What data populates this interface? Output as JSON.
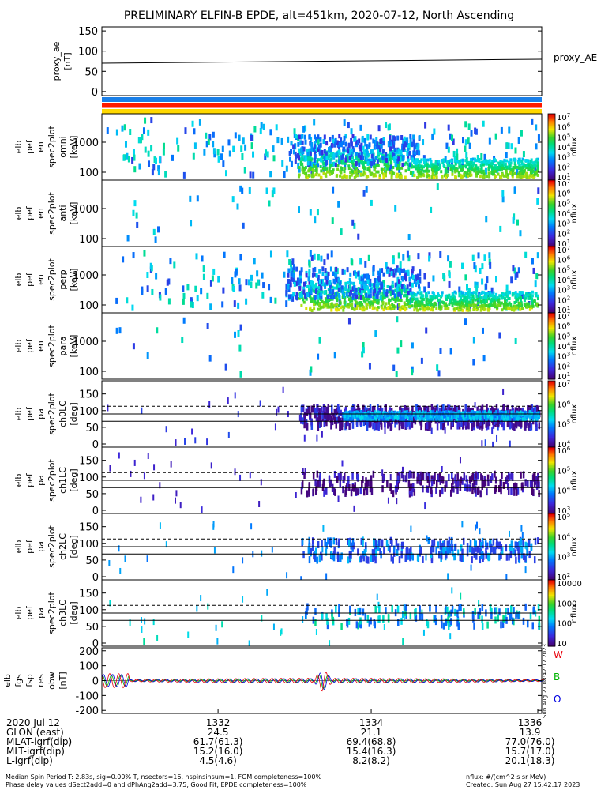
{
  "title": "PRELIMINARY ELFIN-B EPDE, alt=451km, 2020-07-12, North Ascending",
  "proxy_panel": {
    "ylabel": [
      "proxy_ae",
      "[nT]"
    ],
    "yticks": [
      0,
      50,
      100,
      150
    ],
    "ylim": [
      -10,
      160
    ],
    "legend": "proxy_AE"
  },
  "status_bars": [
    {
      "name": "bar1",
      "color": "#1a7fe8"
    },
    {
      "name": "bar2",
      "color": "#ff1a00"
    },
    {
      "name": "bar3",
      "color": "#ffd800"
    }
  ],
  "energy_panels": [
    {
      "ylabel": [
        "elb",
        "pef",
        "en",
        "spec2plot",
        "omni",
        "[keV]"
      ],
      "yticks": [
        "100",
        "1000"
      ],
      "cbar_ticks": [
        "10^1",
        "10^2",
        "10^3",
        "10^4",
        "10^5",
        "10^6",
        "10^7"
      ],
      "cbar_label": "nflux",
      "seed": 11,
      "density": 1.0
    },
    {
      "ylabel": [
        "elb",
        "pef",
        "en",
        "spec2plot",
        "anti",
        "[keV]"
      ],
      "yticks": [
        "100",
        "1000"
      ],
      "cbar_ticks": [
        "10^1",
        "10^2",
        "10^3",
        "10^4",
        "10^5",
        "10^6",
        "10^7"
      ],
      "cbar_label": "nflux",
      "seed": 23,
      "density": 0.12
    },
    {
      "ylabel": [
        "elb",
        "pef",
        "en",
        "spec2plot",
        "perp",
        "[keV]"
      ],
      "yticks": [
        "100",
        "1000"
      ],
      "cbar_ticks": [
        "10^1",
        "10^2",
        "10^3",
        "10^4",
        "10^5",
        "10^6",
        "10^7"
      ],
      "cbar_label": "nflux",
      "seed": 37,
      "density": 0.95
    },
    {
      "ylabel": [
        "elb",
        "pef",
        "en",
        "spec2plot",
        "para",
        "[keV]"
      ],
      "yticks": [
        "100",
        "1000"
      ],
      "cbar_ticks": [
        "10^1",
        "10^2",
        "10^3",
        "10^4",
        "10^5",
        "10^6",
        "10^7"
      ],
      "cbar_label": "nflux",
      "seed": 41,
      "density": 0.1
    }
  ],
  "pa_panels": [
    {
      "ylabel": [
        "elb",
        "pef",
        "pa",
        "spec2plot",
        "ch0LC",
        "[deg]"
      ],
      "yticks": [
        0,
        50,
        100,
        150
      ],
      "cbar_ticks": [
        "10^4",
        "10^5",
        "10^6",
        "10^7"
      ],
      "cbar_label": "nflux",
      "seed": 5,
      "density": 1.0
    },
    {
      "ylabel": [
        "elb",
        "pef",
        "pa",
        "spec2plot",
        "ch1LC",
        "[deg]"
      ],
      "yticks": [
        0,
        50,
        100,
        150
      ],
      "cbar_ticks": [
        "10^3",
        "10^4",
        "10^5",
        "10^6"
      ],
      "cbar_label": "nflux",
      "seed": 17,
      "density": 0.45
    },
    {
      "ylabel": [
        "elb",
        "pef",
        "pa",
        "spec2plot",
        "ch2LC",
        "[deg]"
      ],
      "yticks": [
        0,
        50,
        100,
        150
      ],
      "cbar_ticks": [
        "10^2",
        "10^3",
        "10^4",
        "10^5"
      ],
      "cbar_label": "nflux",
      "seed": 29,
      "density": 0.45
    },
    {
      "ylabel": [
        "elb",
        "pef",
        "pa",
        "spec2plot",
        "ch3LC",
        "[deg]"
      ],
      "yticks": [
        0,
        50,
        100,
        150
      ],
      "cbar_ticks": [
        "10",
        "100",
        "1000",
        "10000"
      ],
      "cbar_label": "nflux",
      "seed": 53,
      "density": 0.25
    }
  ],
  "fgs_panel": {
    "ylabel": [
      "elb",
      "fgs",
      "fsp",
      "res",
      "obw",
      "[nT]"
    ],
    "yticks": [
      -200,
      -100,
      0,
      100,
      200
    ],
    "ylim": [
      -220,
      220
    ],
    "legend": [
      {
        "label": "W",
        "color": "#e8000b"
      },
      {
        "label": "B",
        "color": "#00b400"
      },
      {
        "label": "O",
        "color": "#0000e0"
      }
    ],
    "created_stamp": "Sun Aug 27 08:42:17 2023"
  },
  "x_axis": {
    "row_labels": [
      "2020 Jul 12",
      "GLON (east)",
      "MLAT-igrf(dip)",
      "MLT-igrf(dip)",
      "L-igrf(dip)"
    ],
    "ticks": [
      {
        "label": "1332",
        "values": [
          "24.5",
          "61.7(61.3)",
          "15.2(16.0)",
          "4.5(4.6)"
        ]
      },
      {
        "label": "1334",
        "values": [
          "21.1",
          "69.4(68.8)",
          "15.4(16.3)",
          "8.2(8.2)"
        ]
      },
      {
        "label": "1336",
        "values": [
          "13.9",
          "77.0(76.0)",
          "15.7(17.0)",
          "20.1(18.3)"
        ]
      }
    ]
  },
  "chart_data": {
    "type": "heatmap",
    "proxy_ae": {
      "x": [
        "start",
        "end"
      ],
      "values": [
        70,
        80
      ]
    },
    "pitch_angle_reference_lines_deg": {
      "solid": [
        68,
        90
      ],
      "dashed": [
        113
      ]
    }
  },
  "footer": {
    "left_line1": "Median Spin Period T: 2.83s, sig=0.00% T, nsectors=16, nspinsinsum=1, FGM completeness=100%",
    "left_line2": "Phase delay values dSect2add=0 and dPhAng2add=3.75, Good Fit, EPDE completeness=100%",
    "right_line1": "nflux: #/(cm^2 s sr MeV)",
    "right_line2": "Created: Sun Aug 27 15:42:17 2023"
  }
}
